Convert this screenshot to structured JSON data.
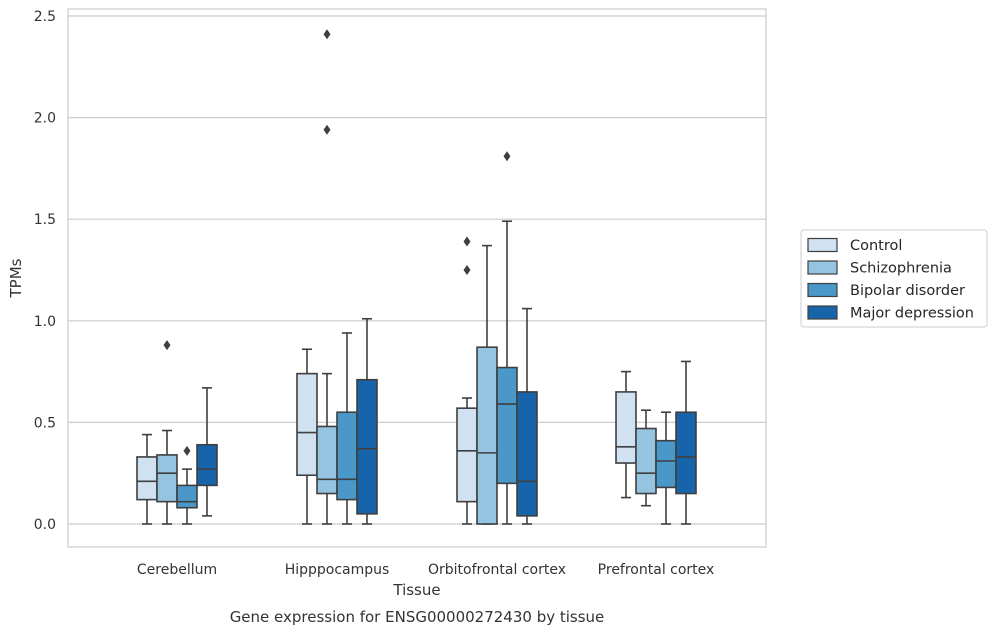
{
  "chart_data": {
    "type": "box",
    "title": "",
    "caption": "Gene expression for ENSG00000272430 by tissue",
    "xlabel": "Tissue",
    "ylabel": "TPMs",
    "ylim": [
      -0.12,
      2.54
    ],
    "yticks": [
      "0.0",
      "0.5",
      "1.0",
      "1.5",
      "2.0",
      "2.5"
    ],
    "ytick_values": [
      0,
      0.5,
      1.0,
      1.5,
      2.0,
      2.5
    ],
    "grid": "horizontal",
    "legend_position": "right",
    "categories": [
      "Cerebellum",
      "Hipppocampus",
      "Orbitofrontal cortex",
      "Prefrontal cortex"
    ],
    "series": [
      {
        "name": "Control",
        "color": "#d0e1f2",
        "boxes": [
          {
            "min": 0.0,
            "q1": 0.12,
            "median": 0.21,
            "q3": 0.33,
            "max": 0.44,
            "outliers": []
          },
          {
            "min": 0.0,
            "q1": 0.24,
            "median": 0.45,
            "q3": 0.74,
            "max": 0.86,
            "outliers": []
          },
          {
            "min": 0.0,
            "q1": 0.11,
            "median": 0.36,
            "q3": 0.57,
            "max": 0.62,
            "outliers": [
              1.25,
              1.39
            ]
          },
          {
            "min": 0.13,
            "q1": 0.3,
            "median": 0.38,
            "q3": 0.65,
            "max": 0.75,
            "outliers": []
          }
        ]
      },
      {
        "name": "Schizophrenia",
        "color": "#94c4df",
        "boxes": [
          {
            "min": 0.0,
            "q1": 0.11,
            "median": 0.25,
            "q3": 0.34,
            "max": 0.46,
            "outliers": [
              0.88
            ]
          },
          {
            "min": 0.0,
            "q1": 0.15,
            "median": 0.22,
            "q3": 0.48,
            "max": 0.74,
            "outliers": [
              1.94,
              2.41
            ]
          },
          {
            "min": 0.0,
            "q1": 0.0,
            "median": 0.35,
            "q3": 0.87,
            "max": 1.37,
            "outliers": []
          },
          {
            "min": 0.09,
            "q1": 0.15,
            "median": 0.25,
            "q3": 0.47,
            "max": 0.56,
            "outliers": []
          }
        ]
      },
      {
        "name": "Bipolar disorder",
        "color": "#4a98c9",
        "boxes": [
          {
            "min": 0.0,
            "q1": 0.08,
            "median": 0.11,
            "q3": 0.19,
            "max": 0.27,
            "outliers": [
              0.36
            ]
          },
          {
            "min": 0.0,
            "q1": 0.12,
            "median": 0.22,
            "q3": 0.55,
            "max": 0.94,
            "outliers": []
          },
          {
            "min": 0.0,
            "q1": 0.2,
            "median": 0.59,
            "q3": 0.77,
            "max": 1.49,
            "outliers": [
              1.81
            ]
          },
          {
            "min": 0.0,
            "q1": 0.18,
            "median": 0.31,
            "q3": 0.41,
            "max": 0.55,
            "outliers": []
          }
        ]
      },
      {
        "name": "Major depression",
        "color": "#1764ab",
        "boxes": [
          {
            "min": 0.04,
            "q1": 0.19,
            "median": 0.27,
            "q3": 0.39,
            "max": 0.67,
            "outliers": []
          },
          {
            "min": 0.0,
            "q1": 0.05,
            "median": 0.37,
            "q3": 0.71,
            "max": 1.01,
            "outliers": []
          },
          {
            "min": 0.0,
            "q1": 0.04,
            "median": 0.21,
            "q3": 0.65,
            "max": 1.06,
            "outliers": []
          },
          {
            "min": 0.0,
            "q1": 0.15,
            "median": 0.33,
            "q3": 0.55,
            "max": 0.8,
            "outliers": []
          }
        ]
      }
    ]
  }
}
